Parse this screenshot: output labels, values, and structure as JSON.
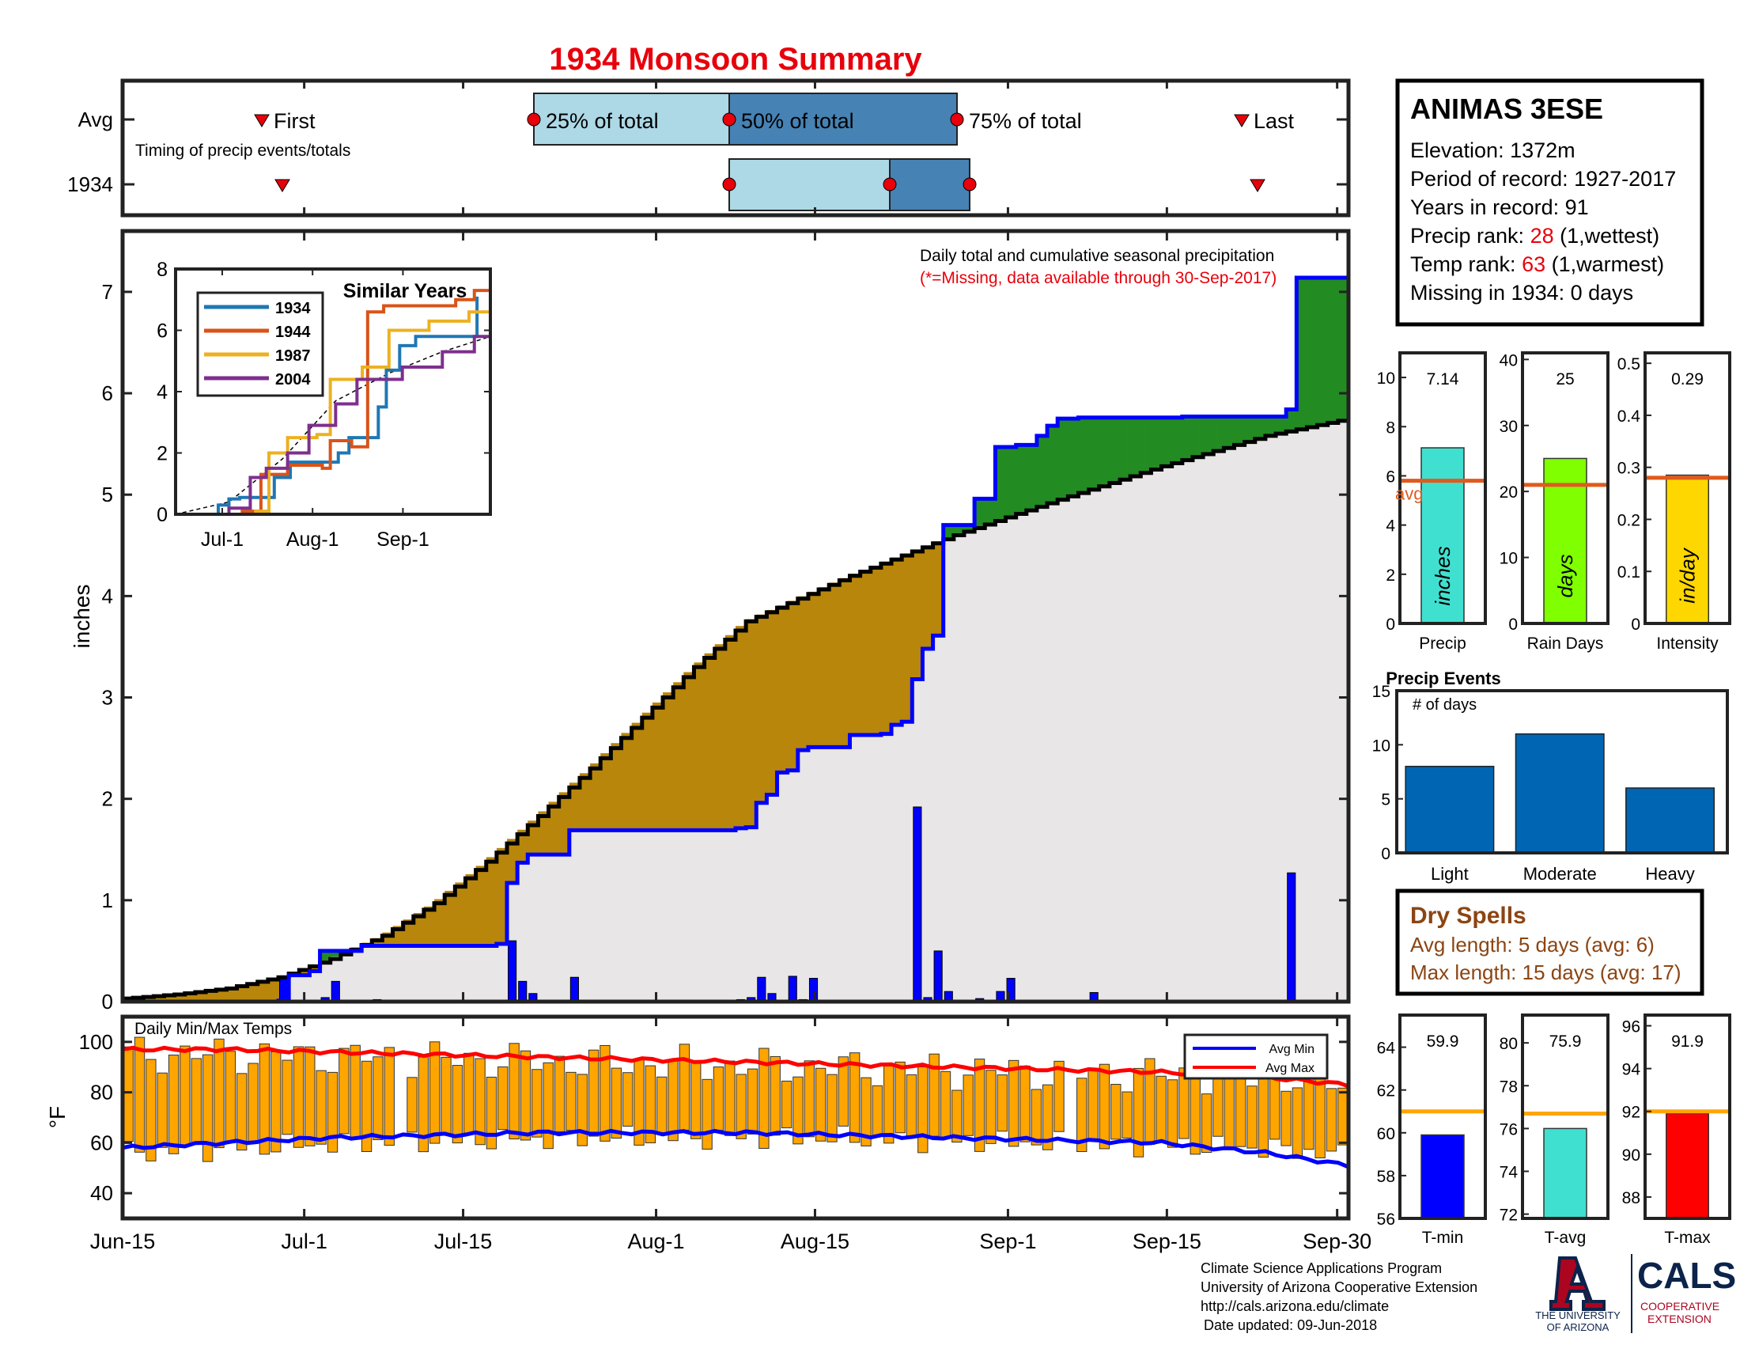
{
  "title": "1934 Monsoon Summary",
  "timing": {
    "row_labels": [
      "Avg",
      "1934"
    ],
    "caption": "Timing of precip events/totals",
    "first_label": "First",
    "last_label": "Last",
    "p25_label": "25% of total",
    "p50_label": "50% of total",
    "p75_label": "75% of total",
    "avg": {
      "first": "Jun-30",
      "p25": "Jul-21",
      "p50": "Aug-7",
      "p75": "Aug-26",
      "last": "Sep-24"
    },
    "year": {
      "first": "Jul-2",
      "p25": "Aug-7",
      "p50": "Aug-20",
      "p75": "Aug-27",
      "last": "Sep-26"
    }
  },
  "station": {
    "name": "ANIMAS 3ESE",
    "elevation_label": "Elevation: 1372m",
    "period_label": "Period of record: 1927-2017",
    "years_label": "Years in record: 91",
    "precip_rank_prefix": "Precip rank: ",
    "precip_rank_value": "28",
    "precip_rank_suffix": " (1,wettest)",
    "temp_rank_prefix": "Temp rank: ",
    "temp_rank_value": "63",
    "temp_rank_suffix": " (1,warmest)",
    "missing_label": "Missing in 1934: 0 days"
  },
  "main_chart_text": {
    "annotation": "Daily total and cumulative seasonal precipitation",
    "missing_note": "(*=Missing, data available through 30-Sep-2017)",
    "ylabel": "inches",
    "temp_label": "Daily Min/Max Temps",
    "temp_ylabel": "°F",
    "legend_min": "Avg Min",
    "legend_max": "Avg Max"
  },
  "summary_bars": [
    {
      "label": "Precip",
      "value_text": "7.14",
      "value": 7.14,
      "avg": 5.8,
      "unit": "inches",
      "avg_text": "avg",
      "ylim": [
        0,
        11
      ],
      "ticks": [
        "0",
        "2",
        "4",
        "6",
        "8",
        "10"
      ],
      "color": "#40e0d0"
    },
    {
      "label": "Rain Days",
      "value_text": "25",
      "value": 25,
      "avg": 21,
      "unit": "days",
      "avg_text": "",
      "ylim": [
        0,
        41
      ],
      "ticks": [
        "0",
        "10",
        "20",
        "30",
        "40"
      ],
      "color": "#80ff00"
    },
    {
      "label": "Intensity",
      "value_text": "0.29",
      "value": 0.285,
      "avg": 0.28,
      "unit": "in/day",
      "avg_text": "",
      "ylim": [
        0,
        0.52
      ],
      "ticks": [
        "0",
        "0.1",
        "0.2",
        "0.3",
        "0.4",
        "0.5"
      ],
      "color": "#ffd700"
    }
  ],
  "precip_events": {
    "title": "Precip Events",
    "ylabel": "# of days",
    "categories": [
      "Light",
      "Moderate",
      "Heavy"
    ],
    "values": [
      8,
      11,
      6
    ],
    "ylim": [
      0,
      15
    ],
    "ticks": [
      "0",
      "5",
      "10",
      "15"
    ],
    "color": "#0066b3"
  },
  "dry_spells": {
    "title": "Dry Spells",
    "avg_length": "Avg length: 5 days (avg: 6)",
    "max_length": "Max length: 15 days (avg: 17)"
  },
  "temp_summary": [
    {
      "label": "T-min",
      "value_text": "59.9",
      "value": 59.9,
      "avg": 61.0,
      "ylim": [
        56,
        65.5
      ],
      "ticks": [
        "56",
        "58",
        "60",
        "62",
        "64"
      ],
      "color": "#0000ff"
    },
    {
      "label": "T-avg",
      "value_text": "75.9",
      "value": 76.0,
      "avg": 76.7,
      "ylim": [
        71.8,
        81.3
      ],
      "ticks": [
        "72",
        "74",
        "76",
        "78",
        "80"
      ],
      "color": "#40e0d0"
    },
    {
      "label": "T-max",
      "value_text": "91.9",
      "value": 91.9,
      "avg": 92.0,
      "ylim": [
        87,
        96.5
      ],
      "ticks": [
        "88",
        "90",
        "92",
        "94",
        "96"
      ],
      "color": "#ff0000"
    }
  ],
  "footer": {
    "line1": "Climate Science Applications Program",
    "line2": "University of Arizona Cooperative Extension",
    "line3": "http://cals.arizona.edu/climate",
    "line4": "Date updated: 09-Jun-2018",
    "ua_line1": "THE UNIVERSITY",
    "ua_line2": "OF ARIZONA",
    "cals": "CALS",
    "cals_sub1": "COOPERATIVE",
    "cals_sub2": "EXTENSION"
  },
  "chart_data": [
    {
      "type": "area",
      "name": "cumulative-precipitation",
      "x_ticks": [
        "Jun-15",
        "Jul-1",
        "Jul-15",
        "Aug-1",
        "Aug-15",
        "Sep-1",
        "Sep-15",
        "Sep-30"
      ],
      "ylim": [
        0,
        7.6
      ],
      "y_ticks": [
        "0",
        "1",
        "2",
        "3",
        "4",
        "5",
        "6",
        "7"
      ],
      "ylabel": "inches",
      "avg_cumulative": [
        [
          0,
          0.03
        ],
        [
          5,
          0.07
        ],
        [
          10,
          0.13
        ],
        [
          15,
          0.24
        ],
        [
          20,
          0.42
        ],
        [
          25,
          0.65
        ],
        [
          30,
          0.97
        ],
        [
          35,
          1.38
        ],
        [
          40,
          1.83
        ],
        [
          45,
          2.3
        ],
        [
          50,
          2.8
        ],
        [
          55,
          3.3
        ],
        [
          60,
          3.75
        ],
        [
          66,
          4.02
        ],
        [
          70,
          4.2
        ],
        [
          80,
          4.6
        ],
        [
          90,
          4.95
        ],
        [
          100,
          5.28
        ],
        [
          110,
          5.58
        ],
        [
          118,
          5.75
        ]
      ],
      "year_cumulative_steps": [
        [
          0,
          0
        ],
        [
          15,
          0.01
        ],
        [
          16,
          0.26
        ],
        [
          18,
          0.3
        ],
        [
          19,
          0.5
        ],
        [
          23,
          0.55
        ],
        [
          36,
          0.57
        ],
        [
          37,
          1.17
        ],
        [
          38,
          1.37
        ],
        [
          39,
          1.45
        ],
        [
          43,
          1.69
        ],
        [
          59,
          1.71
        ],
        [
          60,
          1.72
        ],
        [
          61,
          1.96
        ],
        [
          62,
          2.04
        ],
        [
          63,
          2.26
        ],
        [
          64,
          2.28
        ],
        [
          65,
          2.48
        ],
        [
          66,
          2.51
        ],
        [
          70,
          2.63
        ],
        [
          73,
          2.64
        ],
        [
          74,
          2.73
        ],
        [
          75,
          2.76
        ],
        [
          76,
          3.18
        ],
        [
          77,
          3.48
        ],
        [
          78,
          3.61
        ],
        [
          79,
          4.7
        ],
        [
          82,
          4.96
        ],
        [
          84,
          5.47
        ],
        [
          86,
          5.49
        ],
        [
          88,
          5.58
        ],
        [
          89,
          5.68
        ],
        [
          90,
          5.75
        ],
        [
          92,
          5.76
        ],
        [
          102,
          5.77
        ],
        [
          112,
          5.84
        ],
        [
          113,
          7.14
        ],
        [
          118,
          7.14
        ]
      ],
      "daily_precip": [
        [
          15,
          0.25
        ],
        [
          19,
          0.04
        ],
        [
          20,
          0.2
        ],
        [
          24,
          0.02
        ],
        [
          37,
          0.6
        ],
        [
          38,
          0.2
        ],
        [
          39,
          0.08
        ],
        [
          43,
          0.24
        ],
        [
          59,
          0.02
        ],
        [
          60,
          0.04
        ],
        [
          61,
          0.24
        ],
        [
          62,
          0.08
        ],
        [
          64,
          0.25
        ],
        [
          65,
          0.02
        ],
        [
          66,
          0.23
        ],
        [
          73,
          0.01
        ],
        [
          76,
          1.92
        ],
        [
          77,
          0.04
        ],
        [
          78,
          0.5
        ],
        [
          79,
          0.1
        ],
        [
          82,
          0.03
        ],
        [
          84,
          0.1
        ],
        [
          85,
          0.23
        ],
        [
          93,
          0.09
        ],
        [
          112,
          1.27
        ]
      ]
    },
    {
      "type": "line",
      "name": "similar-years",
      "title": "Similar Years",
      "x_ticks": [
        "Jul-1",
        "Aug-1",
        "Sep-1"
      ],
      "ylim": [
        0,
        8
      ],
      "y_ticks": [
        "0",
        "2",
        "4",
        "6",
        "8"
      ],
      "series": [
        {
          "name": "1934",
          "color": "#1f77b4",
          "points": [
            [
              0,
              0
            ],
            [
              16,
              0.3
            ],
            [
              20,
              0.5
            ],
            [
              24,
              0.55
            ],
            [
              37,
              1.2
            ],
            [
              43,
              1.7
            ],
            [
              61,
              2.0
            ],
            [
              65,
              2.5
            ],
            [
              76,
              3.5
            ],
            [
              79,
              4.7
            ],
            [
              84,
              5.5
            ],
            [
              90,
              5.8
            ],
            [
              113,
              7.1
            ]
          ]
        },
        {
          "name": "1944",
          "color": "#d95319",
          "points": [
            [
              0,
              0
            ],
            [
              25,
              0.1
            ],
            [
              32,
              1.3
            ],
            [
              42,
              1.6
            ],
            [
              55,
              1.5
            ],
            [
              58,
              2.4
            ],
            [
              66,
              2.2
            ],
            [
              72,
              6.6
            ],
            [
              78,
              6.8
            ],
            [
              90,
              6.8
            ],
            [
              105,
              7.0
            ],
            [
              112,
              7.3
            ],
            [
              118,
              7.5
            ]
          ]
        },
        {
          "name": "1987",
          "color": "#edb120",
          "points": [
            [
              0,
              0
            ],
            [
              30,
              0.1
            ],
            [
              35,
              2.0
            ],
            [
              42,
              2.5
            ],
            [
              53,
              2.6
            ],
            [
              58,
              4.4
            ],
            [
              70,
              4.8
            ],
            [
              80,
              6.0
            ],
            [
              95,
              6.3
            ],
            [
              110,
              6.6
            ],
            [
              118,
              7.1
            ]
          ]
        },
        {
          "name": "2004",
          "color": "#7e2f8e",
          "points": [
            [
              0,
              0
            ],
            [
              20,
              0.2
            ],
            [
              28,
              1.2
            ],
            [
              34,
              1.5
            ],
            [
              42,
              2.0
            ],
            [
              50,
              2.9
            ],
            [
              60,
              3.6
            ],
            [
              68,
              4.4
            ],
            [
              85,
              4.8
            ],
            [
              100,
              5.3
            ],
            [
              112,
              5.8
            ],
            [
              118,
              6.0
            ]
          ]
        }
      ],
      "avg_line": [
        [
          0,
          0
        ],
        [
          20,
          0.4
        ],
        [
          40,
          1.8
        ],
        [
          60,
          3.7
        ],
        [
          80,
          4.6
        ],
        [
          100,
          5.3
        ],
        [
          118,
          5.8
        ]
      ]
    },
    {
      "type": "bar",
      "name": "daily-min-max-temps",
      "ylim": [
        30,
        110
      ],
      "y_ticks": [
        "40",
        "60",
        "80",
        "100"
      ],
      "ylabel": "°F",
      "avg_min": [
        [
          0,
          58
        ],
        [
          10,
          60
        ],
        [
          20,
          62
        ],
        [
          30,
          63
        ],
        [
          40,
          64
        ],
        [
          50,
          64
        ],
        [
          60,
          64
        ],
        [
          70,
          63
        ],
        [
          80,
          62
        ],
        [
          90,
          61
        ],
        [
          100,
          60
        ],
        [
          110,
          56
        ],
        [
          118,
          51
        ]
      ],
      "avg_max": [
        [
          0,
          97
        ],
        [
          10,
          97
        ],
        [
          20,
          96
        ],
        [
          30,
          95
        ],
        [
          40,
          94
        ],
        [
          50,
          93
        ],
        [
          60,
          92
        ],
        [
          70,
          91
        ],
        [
          80,
          90
        ],
        [
          90,
          89
        ],
        [
          100,
          88
        ],
        [
          110,
          86
        ],
        [
          118,
          83
        ]
      ],
      "daily_max_base": 95,
      "daily_min_base": 60
    }
  ]
}
